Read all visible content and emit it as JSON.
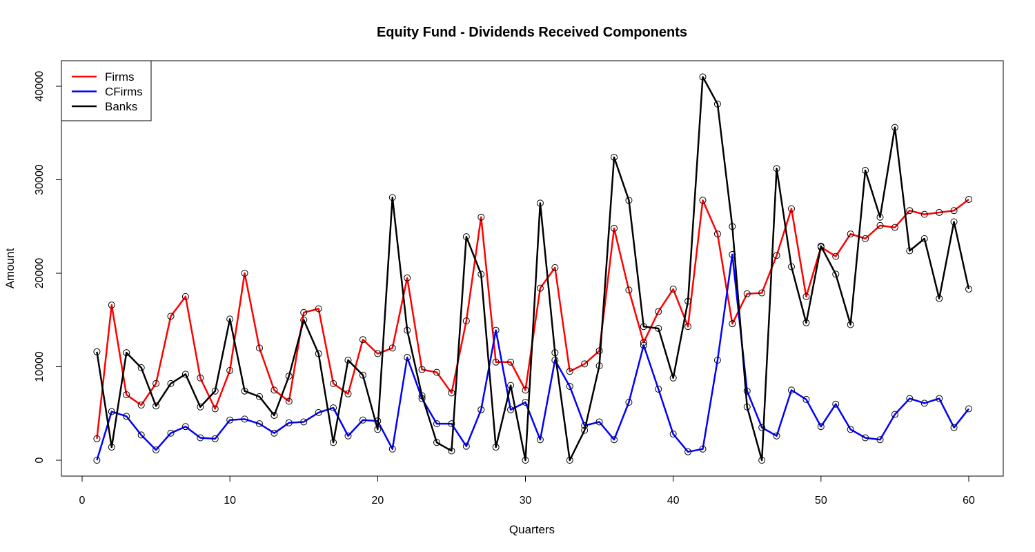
{
  "chart_data": {
    "type": "line",
    "title": "Equity Fund - Dividends Received Components",
    "xlabel": "Quarters",
    "ylabel": "Amount",
    "xlim": [
      0,
      62
    ],
    "ylim": [
      -1500,
      42500
    ],
    "xticks": [
      0,
      10,
      20,
      30,
      40,
      50,
      60
    ],
    "yticks": [
      0,
      10000,
      20000,
      30000,
      40000
    ],
    "grid": false,
    "legend_position": "top-left",
    "x": [
      1,
      2,
      3,
      4,
      5,
      6,
      7,
      8,
      9,
      10,
      11,
      12,
      13,
      14,
      15,
      16,
      17,
      18,
      19,
      20,
      21,
      22,
      23,
      24,
      25,
      26,
      27,
      28,
      29,
      30,
      31,
      32,
      33,
      34,
      35,
      36,
      37,
      38,
      39,
      40,
      41,
      42,
      43,
      44,
      45,
      46,
      47,
      48,
      49,
      50,
      51,
      52,
      53,
      54,
      55,
      56,
      57,
      58,
      59,
      60
    ],
    "series": [
      {
        "name": "Firms",
        "color": "#ff0000",
        "values": [
          2300,
          16600,
          7000,
          5900,
          8200,
          15400,
          17500,
          8800,
          5500,
          9600,
          20000,
          12000,
          7500,
          6300,
          15800,
          16200,
          8200,
          7100,
          12900,
          11400,
          12000,
          19500,
          9700,
          9400,
          7200,
          14900,
          26000,
          10500,
          10500,
          7500,
          18400,
          20600,
          9500,
          10300,
          11700,
          24800,
          18200,
          12600,
          15900,
          18300,
          14300,
          27800,
          24200,
          14600,
          17800,
          17900,
          21900,
          26900,
          17500,
          22800,
          21800,
          24200,
          23700,
          25100,
          24900,
          26700,
          26300,
          26500,
          26700,
          27900
        ]
      },
      {
        "name": "CFirms",
        "color": "#0000ff",
        "values": [
          0,
          5200,
          4700,
          2700,
          1100,
          2900,
          3600,
          2400,
          2300,
          4300,
          4400,
          3900,
          2900,
          4000,
          4100,
          5100,
          5600,
          2600,
          4300,
          4200,
          1200,
          11000,
          6600,
          3900,
          3900,
          1500,
          5400,
          13900,
          5400,
          6200,
          2200,
          10700,
          7900,
          3700,
          4100,
          2200,
          6200,
          12300,
          7600,
          2800,
          900,
          1200,
          10700,
          22000,
          7400,
          3500,
          2600,
          7500,
          6500,
          3600,
          6000,
          3300,
          2400,
          2200,
          4900,
          6600,
          6100,
          6600,
          3500,
          5500
        ]
      },
      {
        "name": "Banks",
        "color": "#000000",
        "values": [
          11600,
          1400,
          11500,
          9900,
          5800,
          8200,
          9200,
          5700,
          7400,
          15100,
          7400,
          6800,
          4800,
          9000,
          15000,
          11400,
          1900,
          10700,
          9100,
          3300,
          28100,
          13900,
          6900,
          1900,
          1000,
          23900,
          19900,
          1400,
          8000,
          0,
          27500,
          11500,
          0,
          3200,
          10100,
          32400,
          27800,
          14300,
          14100,
          8800,
          17000,
          41000,
          38100,
          25000,
          5700,
          0,
          31200,
          20700,
          14700,
          22900,
          19900,
          14500,
          31000,
          26000,
          35600,
          22400,
          23700,
          17300,
          25500,
          18300
        ]
      }
    ]
  }
}
